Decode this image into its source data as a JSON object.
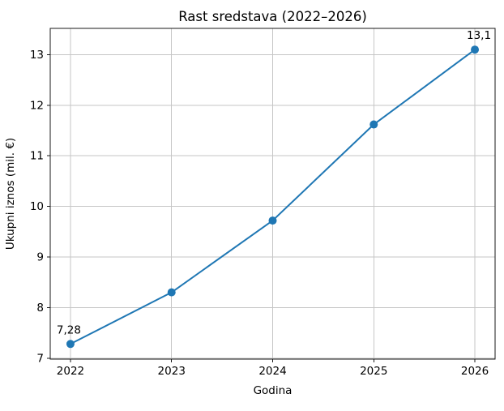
{
  "chart_data": {
    "type": "line",
    "title": "Rast sredstava (2022–2026)",
    "xlabel": "Godina",
    "ylabel": "Ukupni iznos (mil. €)",
    "x": [
      2022,
      2023,
      2024,
      2025,
      2026
    ],
    "series": [
      {
        "name": "Ukupni iznos",
        "values": [
          7.28,
          8.3,
          9.72,
          11.62,
          13.1
        ]
      }
    ],
    "xticks": [
      "2022",
      "2023",
      "2024",
      "2025",
      "2026"
    ],
    "yticks": [
      "7",
      "8",
      "9",
      "10",
      "11",
      "12",
      "13"
    ],
    "xlim": [
      2021.8,
      2026.2
    ],
    "ylim": [
      6.98,
      13.52
    ],
    "grid": true,
    "legend": null,
    "annotations": [
      {
        "x": 2022,
        "value": 7.28,
        "label": "7,28",
        "dx": -2
      },
      {
        "x": 2026,
        "value": 13.1,
        "label": "13,1",
        "dx": 5
      }
    ],
    "style": {
      "line_color": "#1f77b4",
      "marker_color": "#1f77b4",
      "grid_color": "#c6c6c6",
      "spine_color": "#1a1a1a",
      "text_color": "#000000",
      "background": "#ffffff"
    }
  }
}
